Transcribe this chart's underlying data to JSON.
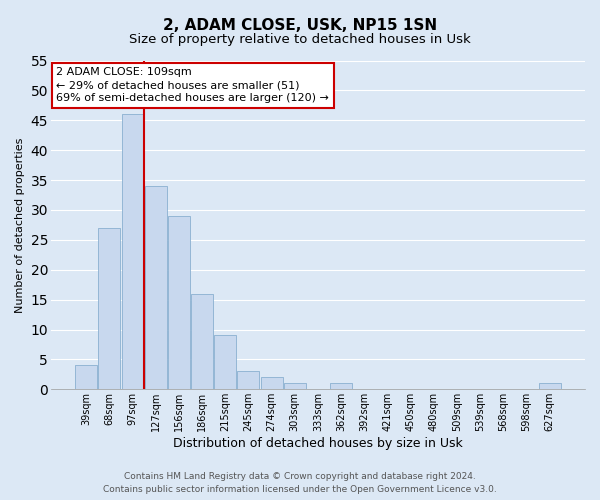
{
  "title": "2, ADAM CLOSE, USK, NP15 1SN",
  "subtitle": "Size of property relative to detached houses in Usk",
  "xlabel": "Distribution of detached houses by size in Usk",
  "ylabel": "Number of detached properties",
  "bar_color": "#c8d8ee",
  "bar_edge_color": "#8ab0d0",
  "categories": [
    "39sqm",
    "68sqm",
    "97sqm",
    "127sqm",
    "156sqm",
    "186sqm",
    "215sqm",
    "245sqm",
    "274sqm",
    "303sqm",
    "333sqm",
    "362sqm",
    "392sqm",
    "421sqm",
    "450sqm",
    "480sqm",
    "509sqm",
    "539sqm",
    "568sqm",
    "598sqm",
    "627sqm"
  ],
  "values": [
    4,
    27,
    46,
    34,
    29,
    16,
    9,
    3,
    2,
    1,
    0,
    1,
    0,
    0,
    0,
    0,
    0,
    0,
    0,
    0,
    1
  ],
  "ylim": [
    0,
    55
  ],
  "yticks": [
    0,
    5,
    10,
    15,
    20,
    25,
    30,
    35,
    40,
    45,
    50,
    55
  ],
  "vline_index": 2,
  "vline_color": "#cc0000",
  "annotation_line1": "2 ADAM CLOSE: 109sqm",
  "annotation_line2": "← 29% of detached houses are smaller (51)",
  "annotation_line3": "69% of semi-detached houses are larger (120) →",
  "annotation_box_color": "#ffffff",
  "annotation_box_edge": "#cc0000",
  "footer_line1": "Contains HM Land Registry data © Crown copyright and database right 2024.",
  "footer_line2": "Contains public sector information licensed under the Open Government Licence v3.0.",
  "background_color": "#dce8f5",
  "grid_color": "#ffffff",
  "title_fontsize": 11,
  "subtitle_fontsize": 9.5,
  "xlabel_fontsize": 9,
  "ylabel_fontsize": 8,
  "tick_fontsize": 7,
  "footer_fontsize": 6.5,
  "annotation_fontsize": 8
}
